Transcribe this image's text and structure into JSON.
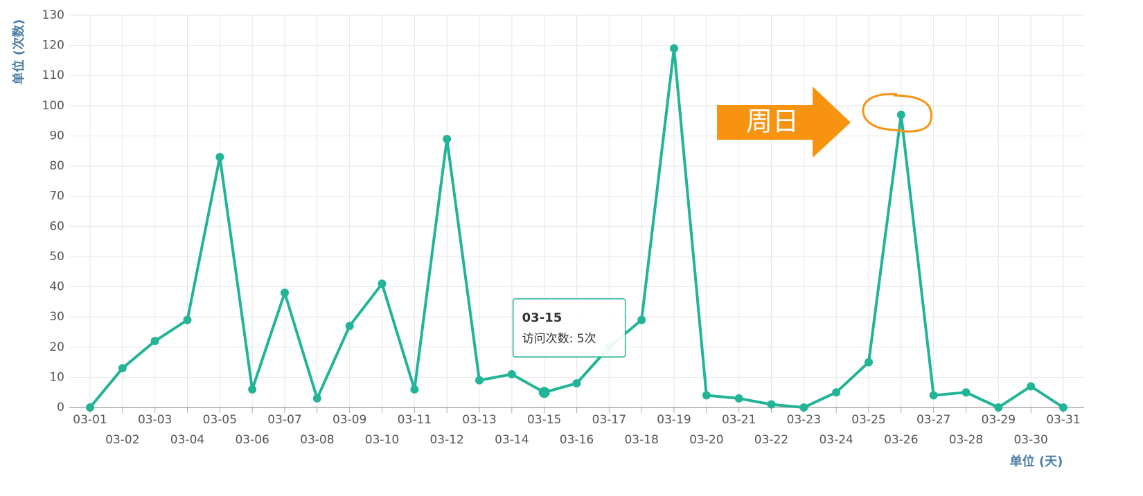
{
  "chart_data": {
    "type": "line",
    "y_axis_label": "单位 (次数)",
    "x_axis_label": "单位 (天)",
    "categories": [
      "03-01",
      "03-02",
      "03-03",
      "03-04",
      "03-05",
      "03-06",
      "03-07",
      "03-08",
      "03-09",
      "03-10",
      "03-11",
      "03-12",
      "03-13",
      "03-14",
      "03-15",
      "03-16",
      "03-17",
      "03-18",
      "03-19",
      "03-20",
      "03-21",
      "03-22",
      "03-23",
      "03-24",
      "03-25",
      "03-26",
      "03-27",
      "03-28",
      "03-29",
      "03-30",
      "03-31"
    ],
    "series": [
      {
        "name": "访问次数",
        "color": "#22b497",
        "values": [
          0,
          13,
          22,
          29,
          83,
          6,
          38,
          3,
          27,
          41,
          6,
          89,
          9,
          11,
          5,
          8,
          20,
          29,
          119,
          4,
          3,
          1,
          0,
          5,
          15,
          97,
          4,
          5,
          0,
          7,
          0
        ]
      }
    ],
    "ylim": [
      0,
      130
    ],
    "yticks": [
      0,
      10,
      20,
      30,
      40,
      50,
      60,
      70,
      80,
      90,
      100,
      110,
      120,
      130
    ],
    "grid": true,
    "tooltip": {
      "title": "03-15",
      "text": "访问次数: 5次"
    },
    "annotation": {
      "text": "周日",
      "color": "#f7930f"
    }
  }
}
